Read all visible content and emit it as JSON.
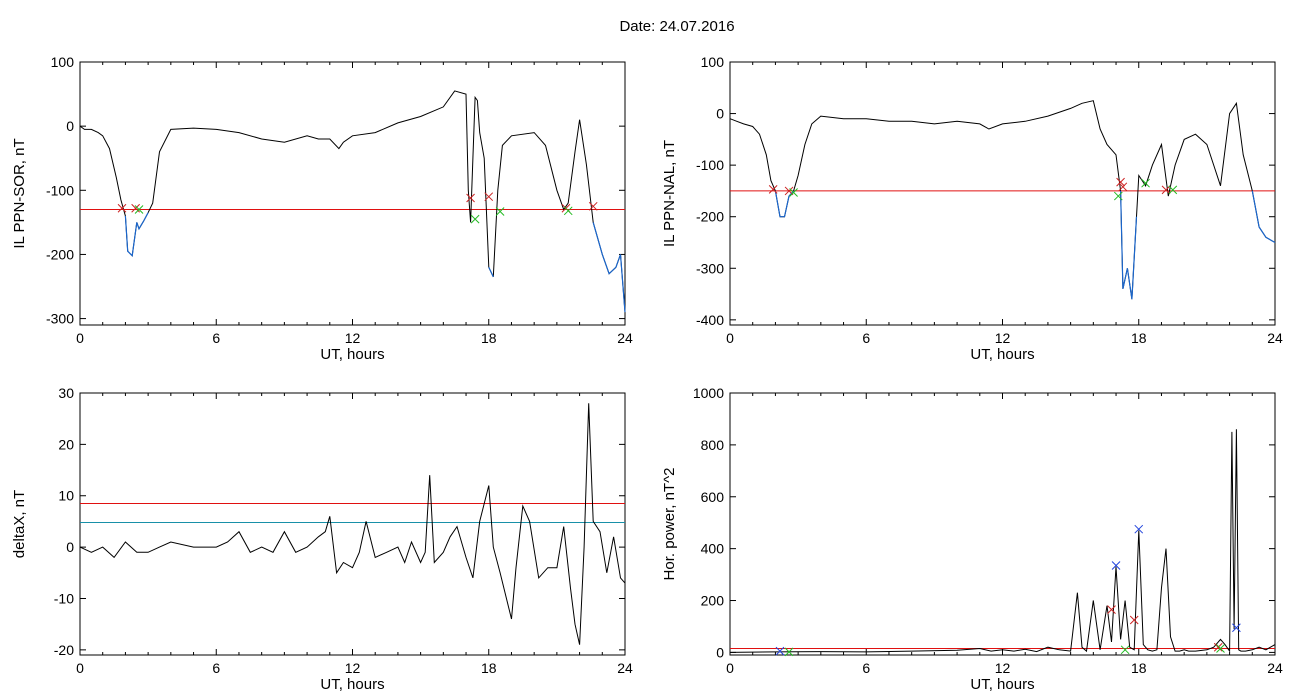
{
  "title": "Date:  24.07.2016",
  "colors": {
    "line": "#000000",
    "segment": "#1a66cc",
    "threshold_red": "#e01010",
    "threshold_blue": "#1890a8",
    "marker_red": "#cc2222",
    "marker_green": "#22bb22",
    "marker_blue": "#2244dd"
  },
  "chart_data": [
    {
      "type": "line",
      "xlabel": "UT, hours",
      "ylabel": "IL PPN-SOR, nT",
      "xlim": [
        0,
        24
      ],
      "ylim": [
        -310,
        100
      ],
      "xticks": [
        0,
        6,
        12,
        18,
        24
      ],
      "yticks": [
        100,
        0,
        -100,
        -200,
        -300
      ],
      "thresholds": [
        {
          "y": -130,
          "color": "red"
        }
      ],
      "series": [
        {
          "x": [
            0,
            0.2,
            0.5,
            0.8,
            1.0,
            1.3,
            1.6,
            1.8,
            2.0,
            2.1,
            2.3,
            2.5,
            2.6,
            2.8,
            3.0,
            3.2,
            3.5,
            4.0,
            5,
            6,
            7,
            8,
            9,
            10,
            10.5,
            11,
            11.4,
            11.6,
            12,
            13,
            14,
            15,
            16,
            16.5,
            17.0,
            17.1,
            17.2,
            17.3,
            17.4,
            17.5,
            17.6,
            17.8,
            18.0,
            18.2,
            18.4,
            18.6,
            19,
            20,
            20.5,
            21.0,
            21.3,
            21.5,
            21.8,
            22.0,
            22.3,
            22.6,
            23.0,
            23.3,
            23.6,
            23.8,
            24
          ],
          "y": [
            0,
            -5,
            -5,
            -10,
            -15,
            -35,
            -80,
            -115,
            -140,
            -195,
            -202,
            -150,
            -160,
            -148,
            -135,
            -120,
            -40,
            -5,
            -3,
            -5,
            -10,
            -20,
            -25,
            -15,
            -20,
            -20,
            -35,
            -25,
            -15,
            -10,
            5,
            15,
            30,
            55,
            50,
            -100,
            -150,
            -50,
            45,
            40,
            -10,
            -50,
            -220,
            -235,
            -100,
            -30,
            -15,
            -10,
            -30,
            -100,
            -130,
            -120,
            -40,
            10,
            -60,
            -150,
            -200,
            -230,
            -220,
            -200,
            -290
          ]
        }
      ],
      "markers": [
        {
          "color": "red",
          "points": [
            [
              1.85,
              -128
            ],
            [
              2.45,
              -128
            ],
            [
              17.2,
              -112
            ],
            [
              18.0,
              -110
            ],
            [
              21.4,
              -128
            ],
            [
              22.6,
              -125
            ]
          ]
        },
        {
          "color": "green",
          "points": [
            [
              2.6,
              -130
            ],
            [
              17.4,
              -145
            ],
            [
              18.5,
              -133
            ],
            [
              21.5,
              -132
            ]
          ]
        }
      ]
    },
    {
      "type": "line",
      "xlabel": "UT, hours",
      "ylabel": "IL PPN-NAL, nT",
      "xlim": [
        0,
        24
      ],
      "ylim": [
        -410,
        100
      ],
      "xticks": [
        0,
        6,
        12,
        18,
        24
      ],
      "yticks": [
        100,
        0,
        -100,
        -200,
        -300,
        -400
      ],
      "thresholds": [
        {
          "y": -150,
          "color": "red"
        }
      ],
      "series": [
        {
          "x": [
            0,
            0.3,
            0.6,
            1.0,
            1.3,
            1.6,
            1.8,
            2.0,
            2.2,
            2.4,
            2.6,
            2.8,
            3.0,
            3.3,
            3.6,
            4,
            5,
            6,
            7,
            8,
            9,
            10,
            11,
            11.4,
            12,
            13,
            14,
            15,
            15.5,
            16,
            16.3,
            16.6,
            17.0,
            17.2,
            17.3,
            17.5,
            17.7,
            17.9,
            18.0,
            18.3,
            18.6,
            19,
            19.3,
            19.6,
            20,
            20.5,
            21,
            21.3,
            21.6,
            22.0,
            22.3,
            22.6,
            23,
            23.3,
            23.6,
            24
          ],
          "y": [
            -10,
            -15,
            -20,
            -25,
            -40,
            -80,
            -130,
            -150,
            -200,
            -200,
            -160,
            -150,
            -120,
            -60,
            -20,
            -5,
            -10,
            -10,
            -15,
            -15,
            -20,
            -15,
            -20,
            -30,
            -20,
            -15,
            -5,
            10,
            20,
            25,
            -30,
            -60,
            -80,
            -150,
            -340,
            -300,
            -360,
            -200,
            -120,
            -140,
            -100,
            -60,
            -160,
            -100,
            -50,
            -40,
            -60,
            -100,
            -140,
            0,
            20,
            -80,
            -150,
            -220,
            -240,
            -250
          ]
        }
      ],
      "markers": [
        {
          "color": "red",
          "points": [
            [
              1.9,
              -147
            ],
            [
              2.6,
              -150
            ],
            [
              17.2,
              -133
            ],
            [
              17.3,
              -142
            ],
            [
              19.2,
              -148
            ]
          ]
        },
        {
          "color": "green",
          "points": [
            [
              2.8,
              -153
            ],
            [
              17.1,
              -160
            ],
            [
              18.3,
              -135
            ],
            [
              19.5,
              -148
            ]
          ]
        }
      ]
    },
    {
      "type": "line",
      "xlabel": "UT, hours",
      "ylabel": "deltaX, nT",
      "xlim": [
        0,
        24
      ],
      "ylim": [
        -21,
        30
      ],
      "xticks": [
        0,
        6,
        12,
        18,
        24
      ],
      "yticks": [
        30,
        20,
        10,
        0,
        -10,
        -20
      ],
      "thresholds": [
        {
          "y": 8.5,
          "color": "red"
        },
        {
          "y": 4.8,
          "color": "blue"
        }
      ],
      "series": [
        {
          "x": [
            0,
            0.5,
            1,
            1.5,
            2,
            2.5,
            3,
            3.5,
            4,
            5,
            6,
            6.5,
            7,
            7.5,
            8,
            8.5,
            9,
            9.5,
            10,
            10.5,
            10.8,
            11,
            11.3,
            11.6,
            12,
            12.3,
            12.6,
            13,
            13.5,
            14,
            14.3,
            14.6,
            15,
            15.2,
            15.4,
            15.6,
            16,
            16.3,
            16.6,
            17,
            17.3,
            17.6,
            18,
            18.2,
            18.5,
            19,
            19.2,
            19.5,
            19.8,
            20.2,
            20.6,
            21,
            21.3,
            21.6,
            21.8,
            22.0,
            22.2,
            22.4,
            22.6,
            22.9,
            23.2,
            23.5,
            23.8,
            24
          ],
          "y": [
            0,
            -1,
            0,
            -2,
            1,
            -1,
            -1,
            0,
            1,
            0,
            0,
            1,
            3,
            -1,
            0,
            -1,
            3,
            -1,
            0,
            2,
            3,
            6,
            -5,
            -3,
            -4,
            -1,
            5,
            -2,
            -1,
            0,
            -3,
            1,
            -3,
            -1,
            14,
            -3,
            -1,
            2,
            4,
            -2,
            -6,
            5,
            12,
            0,
            -5,
            -14,
            -4,
            8,
            5,
            -6,
            -4,
            -4,
            4,
            -8,
            -15,
            -19,
            0,
            28,
            5,
            3,
            -5,
            2,
            -6,
            -7
          ]
        }
      ],
      "markers": []
    },
    {
      "type": "line",
      "xlabel": "UT, hours",
      "ylabel": "Hor. power, nT^2",
      "xlim": [
        0,
        24
      ],
      "ylim": [
        -10,
        1000
      ],
      "xticks": [
        0,
        6,
        12,
        18,
        24
      ],
      "yticks": [
        1000,
        800,
        600,
        400,
        200,
        0
      ],
      "thresholds": [
        {
          "y": 15,
          "color": "red"
        }
      ],
      "series": [
        {
          "x": [
            0,
            2,
            4,
            6,
            8,
            10,
            11,
            11.5,
            12,
            12.5,
            13,
            13.5,
            14,
            14.5,
            15,
            15.3,
            15.5,
            15.7,
            16,
            16.3,
            16.6,
            16.8,
            17.0,
            17.2,
            17.4,
            17.6,
            17.8,
            18.0,
            18.2,
            18.4,
            18.6,
            18.8,
            19.0,
            19.2,
            19.4,
            19.6,
            19.8,
            20.0,
            20.2,
            20.5,
            21,
            21.3,
            21.6,
            21.8,
            22.0,
            22.1,
            22.2,
            22.3,
            22.4,
            22.5,
            22.7,
            23,
            23.3,
            23.6,
            24
          ],
          "y": [
            0,
            2,
            3,
            2,
            5,
            8,
            15,
            5,
            10,
            5,
            12,
            3,
            20,
            10,
            5,
            230,
            20,
            5,
            200,
            10,
            180,
            40,
            330,
            50,
            200,
            20,
            10,
            470,
            30,
            10,
            5,
            10,
            250,
            400,
            60,
            5,
            5,
            10,
            5,
            5,
            10,
            20,
            50,
            30,
            5,
            850,
            90,
            860,
            10,
            5,
            5,
            10,
            20,
            10,
            30
          ]
        }
      ],
      "markers": [
        {
          "color": "red",
          "points": [
            [
              16.8,
              165
            ],
            [
              17.8,
              125
            ],
            [
              21.5,
              20
            ]
          ]
        },
        {
          "color": "blue",
          "points": [
            [
              2.2,
              5
            ],
            [
              17.0,
              335
            ],
            [
              18.0,
              475
            ],
            [
              22.3,
              95
            ]
          ]
        },
        {
          "color": "green",
          "points": [
            [
              2.6,
              2
            ],
            [
              17.4,
              10
            ],
            [
              21.6,
              15
            ]
          ]
        }
      ]
    }
  ]
}
